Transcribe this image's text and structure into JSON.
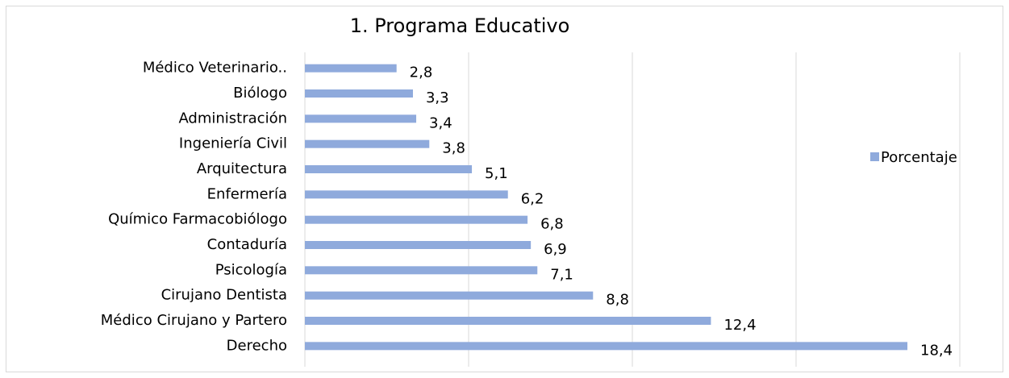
{
  "chart_data": {
    "type": "bar",
    "orientation": "horizontal",
    "title": "1. Programa Educativo",
    "categories": [
      "Médico Veterinario..",
      "Biólogo",
      "Administración",
      "Ingeniería Civil",
      "Arquitectura",
      "Enfermería",
      "Químico Farmacobiólogo",
      "Contaduría",
      "Psicología",
      "Cirujano Dentista",
      "Médico Cirujano y Partero",
      "Derecho"
    ],
    "series": [
      {
        "name": "Porcentaje",
        "color": "#8faadc",
        "values": [
          2.8,
          3.3,
          3.4,
          3.8,
          5.1,
          6.2,
          6.8,
          6.9,
          7.1,
          8.8,
          12.4,
          18.4
        ],
        "value_labels": [
          "2,8",
          "3,3",
          "3,4",
          "3,8",
          "5,1",
          "6,2",
          "6,8",
          "6,9",
          "7,1",
          "8,8",
          "12,4",
          "18,4"
        ]
      }
    ],
    "xlim": [
      0,
      20
    ],
    "xticks": [
      0,
      5,
      10,
      15,
      20
    ],
    "grid": true,
    "legend": "right"
  }
}
